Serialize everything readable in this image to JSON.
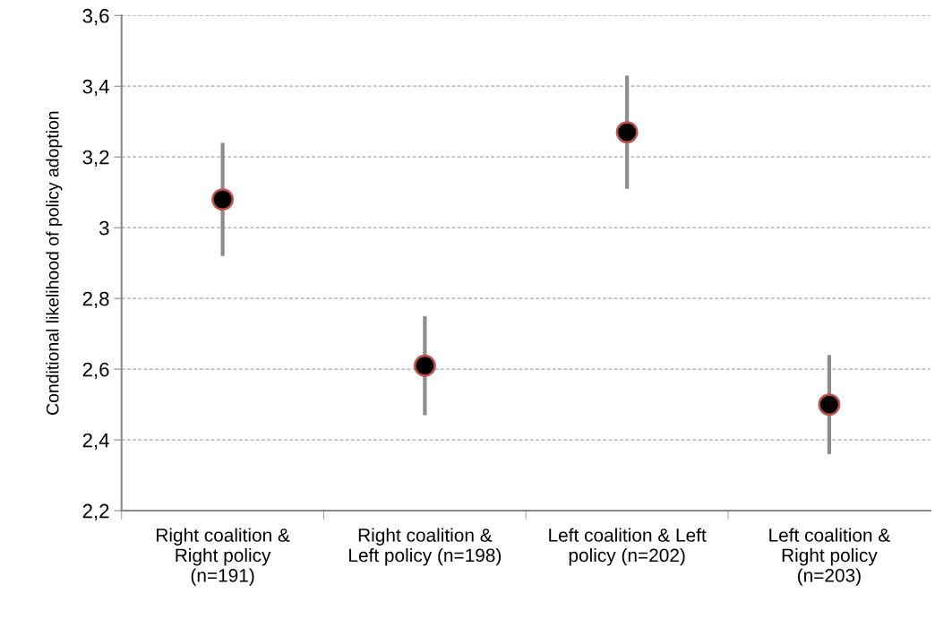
{
  "chart_data": {
    "type": "scatter",
    "ylabel": "Conditional likelihood of policy adoption",
    "categories": [
      "Right coalition &\nRight policy\n(n=191)",
      "Right coalition &\nLeft policy (n=198)",
      "Left coalition & Left\npolicy (n=202)",
      "Left coalition &\nRight policy\n(n=203)"
    ],
    "values": [
      3.08,
      2.61,
      3.27,
      2.5
    ],
    "errors": [
      [
        2.92,
        3.24
      ],
      [
        2.47,
        2.75
      ],
      [
        3.11,
        3.43
      ],
      [
        2.36,
        2.64
      ]
    ],
    "color": "#000000",
    "ylim": [
      2.2,
      3.6
    ],
    "yticks": [
      {
        "value": 2.2,
        "label": "2,2"
      },
      {
        "value": 2.4,
        "label": "2,4"
      },
      {
        "value": 2.6,
        "label": "2,6"
      },
      {
        "value": 2.8,
        "label": "2,8"
      },
      {
        "value": 3,
        "label": "3"
      },
      {
        "value": 3.2,
        "label": "3,2"
      },
      {
        "value": 3.4,
        "label": "3,4"
      },
      {
        "value": 3.6,
        "label": "3,6"
      }
    ],
    "grid": "y",
    "marker": "circle",
    "legend": false
  }
}
